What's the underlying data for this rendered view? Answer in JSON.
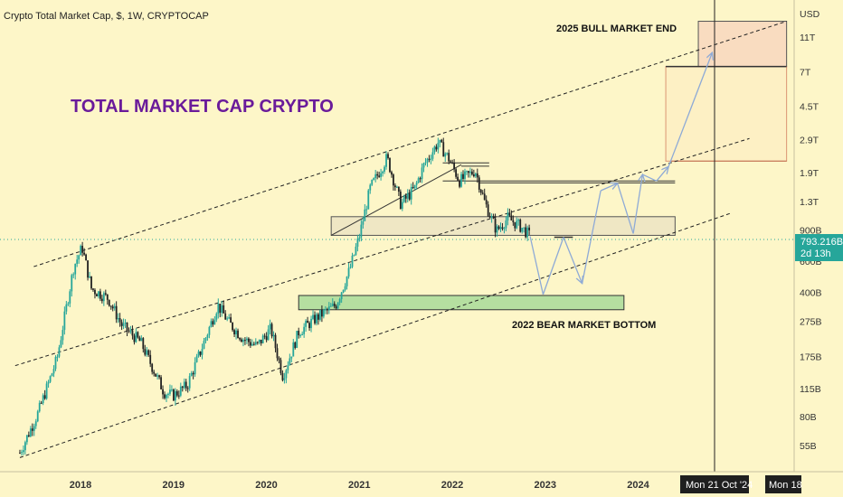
{
  "header": {
    "title": "Crypto Total Market Cap, $, 1W, CRYPTOCAP"
  },
  "chart_data": {
    "type": "candlestick",
    "title": "TOTAL MARKET CAP CRYPTO",
    "y_scale": "log",
    "y_currency": "USD",
    "y_ticks": [
      {
        "label": "11T",
        "value": 11000
      },
      {
        "label": "7T",
        "value": 7000
      },
      {
        "label": "4.5T",
        "value": 4500
      },
      {
        "label": "2.9T",
        "value": 2900
      },
      {
        "label": "1.9T",
        "value": 1900
      },
      {
        "label": "1.3T",
        "value": 1300
      },
      {
        "label": "900B",
        "value": 900
      },
      {
        "label": "600B",
        "value": 600
      },
      {
        "label": "400B",
        "value": 400
      },
      {
        "label": "275B",
        "value": 275
      },
      {
        "label": "175B",
        "value": 175
      },
      {
        "label": "115B",
        "value": 115
      },
      {
        "label": "80B",
        "value": 80
      },
      {
        "label": "55B",
        "value": 55
      }
    ],
    "x_ticks": [
      "2018",
      "2019",
      "2020",
      "2021",
      "2022",
      "2023",
      "2024"
    ],
    "price_path": [
      {
        "t": 2017.35,
        "v": 50
      },
      {
        "t": 2017.55,
        "v": 85
      },
      {
        "t": 2017.75,
        "v": 170
      },
      {
        "t": 2017.93,
        "v": 560
      },
      {
        "t": 2018.02,
        "v": 720
      },
      {
        "t": 2018.12,
        "v": 420
      },
      {
        "t": 2018.3,
        "v": 370
      },
      {
        "t": 2018.45,
        "v": 260
      },
      {
        "t": 2018.65,
        "v": 210
      },
      {
        "t": 2018.9,
        "v": 110
      },
      {
        "t": 2019.0,
        "v": 105
      },
      {
        "t": 2019.15,
        "v": 120
      },
      {
        "t": 2019.3,
        "v": 190
      },
      {
        "t": 2019.48,
        "v": 340
      },
      {
        "t": 2019.6,
        "v": 270
      },
      {
        "t": 2019.75,
        "v": 220
      },
      {
        "t": 2019.9,
        "v": 200
      },
      {
        "t": 2020.05,
        "v": 250
      },
      {
        "t": 2020.18,
        "v": 135
      },
      {
        "t": 2020.35,
        "v": 240
      },
      {
        "t": 2020.55,
        "v": 290
      },
      {
        "t": 2020.75,
        "v": 340
      },
      {
        "t": 2020.9,
        "v": 540
      },
      {
        "t": 2021.0,
        "v": 820
      },
      {
        "t": 2021.12,
        "v": 1550
      },
      {
        "t": 2021.3,
        "v": 2300
      },
      {
        "t": 2021.45,
        "v": 1250
      },
      {
        "t": 2021.6,
        "v": 1550
      },
      {
        "t": 2021.7,
        "v": 2100
      },
      {
        "t": 2021.85,
        "v": 2800
      },
      {
        "t": 2021.97,
        "v": 2250
      },
      {
        "t": 2022.08,
        "v": 1700
      },
      {
        "t": 2022.25,
        "v": 1950
      },
      {
        "t": 2022.35,
        "v": 1300
      },
      {
        "t": 2022.48,
        "v": 890
      },
      {
        "t": 2022.6,
        "v": 1050
      },
      {
        "t": 2022.75,
        "v": 930
      },
      {
        "t": 2022.84,
        "v": 830
      }
    ],
    "projection_path": [
      {
        "t": 2022.84,
        "v": 830
      },
      {
        "t": 2022.98,
        "v": 390
      },
      {
        "t": 2023.2,
        "v": 820
      },
      {
        "t": 2023.4,
        "v": 450
      },
      {
        "t": 2023.6,
        "v": 1500
      },
      {
        "t": 2023.78,
        "v": 1650
      },
      {
        "t": 2023.95,
        "v": 860
      },
      {
        "t": 2024.05,
        "v": 1850
      },
      {
        "t": 2024.2,
        "v": 1700
      },
      {
        "t": 2024.33,
        "v": 2050
      },
      {
        "t": 2024.8,
        "v": 9000
      }
    ],
    "zones": [
      {
        "name": "resistance",
        "t0": 2020.7,
        "t1": 2024.4,
        "v0": 840,
        "v1": 1070
      },
      {
        "name": "support",
        "t0": 2020.35,
        "t1": 2023.85,
        "v0": 320,
        "v1": 385
      },
      {
        "name": "target",
        "t0": 2024.65,
        "t1": 2025.6,
        "v0": 7500,
        "v1": 13500
      }
    ],
    "annotations": [
      {
        "text": "2025 BULL MARKET END",
        "t": 2024.1,
        "v": 12200
      },
      {
        "text": "2022 BEAR MARKET BOTTOM",
        "t": 2023.0,
        "v": 285
      }
    ],
    "current_price": {
      "value_label": "793.216B",
      "countdown": "2d 13h"
    },
    "crosshair": {
      "date_label": "Mon 21 Oct '24",
      "next_label": "Mon 18"
    }
  },
  "colors": {
    "up": "#26a69a",
    "down": "#222222",
    "background": "#fdf6c8",
    "title": "#6a1b9a",
    "projection": "#8eaad6",
    "current_price": "#26a69a"
  }
}
